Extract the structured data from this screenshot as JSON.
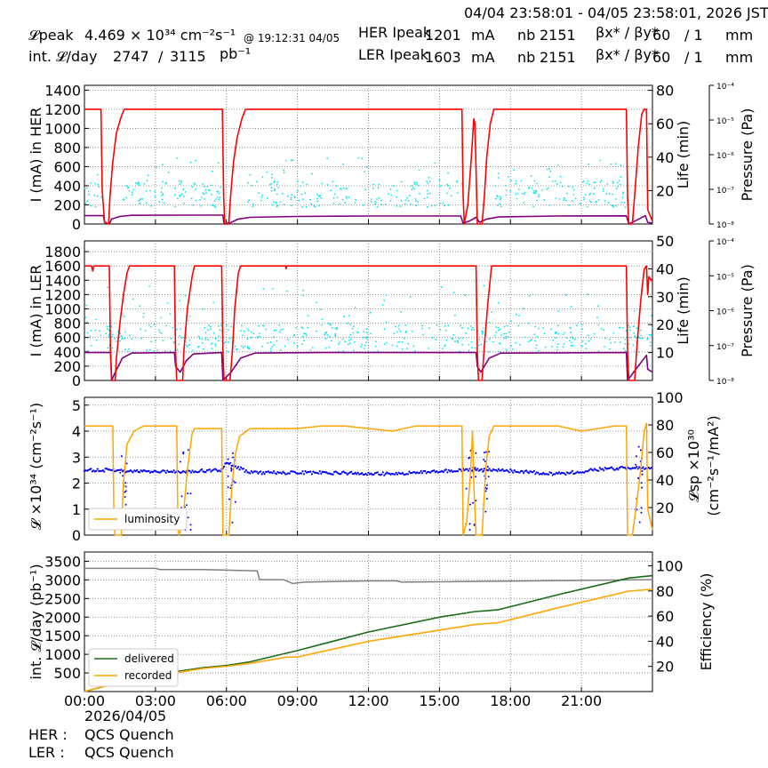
{
  "header": {
    "date_range": "04/04 23:58:01 - 04/05 23:58:01, 2026 JST",
    "lpeak_label": "𝓛peak",
    "lpeak_value": "4.469",
    "lpeak_unit": "× 10³⁴ cm⁻²s⁻¹",
    "lpeak_time": "@ 19:12:31 04/05",
    "intl_label": "int. 𝓛/day",
    "intl_value": "2747",
    "intl_sep": "/",
    "intl_total": "3115",
    "intl_unit": "pb⁻¹",
    "her_label": "HER Ipeak",
    "her_value": "1201",
    "her_unit": "mA",
    "her_nb_label": "nb",
    "her_nb": "2151",
    "her_beta_label": "βx* / βy*",
    "her_beta_x": "60",
    "her_beta_y": "/ 1",
    "her_beta_unit": "mm",
    "ler_label": "LER Ipeak",
    "ler_value": "1603",
    "ler_unit": "mA",
    "ler_nb_label": "nb",
    "ler_nb": "2151",
    "ler_beta_label": "βx* / βy*",
    "ler_beta_x": "60",
    "ler_beta_y": "/ 1",
    "ler_beta_unit": "mm"
  },
  "footer": {
    "date": "2026/04/05",
    "her_label": "HER :",
    "her_note": "QCS Quench",
    "ler_label": "LER :",
    "ler_note": "QCS Quench"
  },
  "colors": {
    "current": "#ff0000",
    "life": "#800080",
    "pressure": "#00e5ee",
    "lumi": "#ffa500",
    "spec": "#0000ff",
    "delivered": "#1a6b1a",
    "recorded": "#ffa500",
    "efficiency": "#808080"
  },
  "chart_data": [
    {
      "type": "line",
      "name": "HER",
      "ylabel": "I (mA) in HER",
      "ylim": [
        0,
        1450
      ],
      "yticks": [
        0,
        200,
        400,
        600,
        800,
        1000,
        1200,
        1400
      ],
      "y2label": "Life (min)",
      "y2lim": [
        0,
        83
      ],
      "y2ticks": [
        20,
        40,
        60,
        80
      ],
      "y3label": "Pressure (Pa)",
      "y3ticks": [
        "10⁻⁴",
        "10⁻⁵",
        "10⁻⁶",
        "10⁻⁷",
        "10⁻⁸"
      ],
      "xlim": [
        0,
        24
      ],
      "current": [
        [
          0,
          1200
        ],
        [
          0.7,
          1200
        ],
        [
          0.75,
          350
        ],
        [
          0.85,
          20
        ],
        [
          1.02,
          0
        ],
        [
          1.08,
          300
        ],
        [
          1.2,
          650
        ],
        [
          1.35,
          950
        ],
        [
          1.55,
          1120
        ],
        [
          1.68,
          1200
        ],
        [
          4.6,
          1200
        ],
        [
          4.67,
          1200
        ],
        [
          5.83,
          1200
        ],
        [
          5.88,
          300
        ],
        [
          5.93,
          0
        ],
        [
          6.1,
          0
        ],
        [
          6.18,
          300
        ],
        [
          6.3,
          650
        ],
        [
          6.45,
          900
        ],
        [
          6.65,
          1100
        ],
        [
          6.8,
          1195
        ],
        [
          6.9,
          1200
        ],
        [
          15.95,
          1200
        ],
        [
          16.0,
          300
        ],
        [
          16.05,
          0
        ],
        [
          16.2,
          200
        ],
        [
          16.35,
          700
        ],
        [
          16.45,
          1100
        ],
        [
          16.5,
          1050
        ],
        [
          16.6,
          0
        ],
        [
          16.8,
          0
        ],
        [
          16.9,
          300
        ],
        [
          17.0,
          700
        ],
        [
          17.15,
          1050
        ],
        [
          17.3,
          1200
        ],
        [
          22.9,
          1200
        ],
        [
          22.95,
          300
        ],
        [
          23.0,
          0
        ],
        [
          23.15,
          0
        ],
        [
          23.25,
          300
        ],
        [
          23.4,
          800
        ],
        [
          23.55,
          1150
        ],
        [
          23.65,
          1200
        ],
        [
          23.75,
          1200
        ],
        [
          23.8,
          150
        ],
        [
          24,
          30
        ]
      ],
      "life": [
        [
          0,
          5
        ],
        [
          0.8,
          5
        ],
        [
          0.85,
          1
        ],
        [
          1.05,
          0
        ],
        [
          1.15,
          3
        ],
        [
          1.5,
          4.5
        ],
        [
          2,
          5.2
        ],
        [
          4.6,
          5.3
        ],
        [
          5.85,
          5.3
        ],
        [
          5.9,
          0
        ],
        [
          6.2,
          1
        ],
        [
          6.5,
          3
        ],
        [
          7,
          4
        ],
        [
          9,
          4.5
        ],
        [
          12,
          4.8
        ],
        [
          15.9,
          4.8
        ],
        [
          16,
          0.5
        ],
        [
          16.3,
          2
        ],
        [
          16.55,
          4
        ],
        [
          16.7,
          1
        ],
        [
          17,
          3
        ],
        [
          17.5,
          4.2
        ],
        [
          20,
          4.8
        ],
        [
          22.9,
          4.9
        ],
        [
          23,
          0
        ],
        [
          23.3,
          2
        ],
        [
          23.7,
          5
        ],
        [
          23.8,
          1
        ],
        [
          24,
          0.5
        ]
      ],
      "pressure_band": [
        10,
        26
      ],
      "pressure_gaps": [
        [
          0.75,
          1.6
        ],
        [
          5.83,
          6.85
        ],
        [
          15.95,
          17.3
        ],
        [
          22.9,
          24
        ]
      ]
    },
    {
      "type": "line",
      "name": "LER",
      "ylabel": "I (mA) in LER",
      "ylim": [
        0,
        1950
      ],
      "yticks": [
        0,
        200,
        400,
        600,
        800,
        1000,
        1200,
        1400,
        1600,
        1800
      ],
      "y2label": "Life (min)",
      "y2lim": [
        0,
        50
      ],
      "y2ticks": [
        10,
        20,
        30,
        40,
        50
      ],
      "y3label": "Pressure (Pa)",
      "y3ticks": [
        "10⁻⁴",
        "10⁻⁵",
        "10⁻⁶",
        "10⁻⁷",
        "10⁻⁸"
      ],
      "xlim": [
        0,
        24
      ],
      "current": [
        [
          0,
          1600
        ],
        [
          0.3,
          1600
        ],
        [
          0.35,
          1530
        ],
        [
          0.4,
          1600
        ],
        [
          1.05,
          1600
        ],
        [
          1.1,
          400
        ],
        [
          1.15,
          0
        ],
        [
          1.3,
          0
        ],
        [
          1.35,
          300
        ],
        [
          1.5,
          800
        ],
        [
          1.65,
          1200
        ],
        [
          1.8,
          1500
        ],
        [
          1.9,
          1600
        ],
        [
          3.8,
          1600
        ],
        [
          3.85,
          400
        ],
        [
          3.9,
          0
        ],
        [
          4.15,
          0
        ],
        [
          4.2,
          400
        ],
        [
          4.35,
          1000
        ],
        [
          4.55,
          1450
        ],
        [
          4.65,
          1600
        ],
        [
          5.8,
          1600
        ],
        [
          5.85,
          400
        ],
        [
          5.9,
          0
        ],
        [
          6.15,
          0
        ],
        [
          6.25,
          400
        ],
        [
          6.35,
          1000
        ],
        [
          6.5,
          1500
        ],
        [
          6.6,
          1600
        ],
        [
          8.5,
          1600
        ],
        [
          8.52,
          1560
        ],
        [
          8.55,
          1600
        ],
        [
          16.55,
          1600
        ],
        [
          16.6,
          400
        ],
        [
          16.65,
          0
        ],
        [
          16.8,
          0
        ],
        [
          16.9,
          500
        ],
        [
          17.05,
          1100
        ],
        [
          17.2,
          1600
        ],
        [
          22.9,
          1600
        ],
        [
          22.95,
          400
        ],
        [
          23.0,
          0
        ],
        [
          23.25,
          0
        ],
        [
          23.35,
          500
        ],
        [
          23.5,
          1100
        ],
        [
          23.65,
          1550
        ],
        [
          23.75,
          1600
        ],
        [
          23.8,
          1200
        ],
        [
          23.85,
          1450
        ],
        [
          24,
          1380
        ]
      ],
      "life": [
        [
          0,
          10
        ],
        [
          1.1,
          10
        ],
        [
          1.15,
          0
        ],
        [
          1.25,
          2
        ],
        [
          1.6,
          8
        ],
        [
          2,
          9.8
        ],
        [
          3.8,
          10
        ],
        [
          3.85,
          5
        ],
        [
          4.05,
          3
        ],
        [
          4.3,
          7
        ],
        [
          4.6,
          9.5
        ],
        [
          5.8,
          10
        ],
        [
          5.85,
          0
        ],
        [
          6.2,
          3
        ],
        [
          6.6,
          8
        ],
        [
          7.2,
          9.8
        ],
        [
          10,
          10
        ],
        [
          16.55,
          10
        ],
        [
          16.6,
          5
        ],
        [
          16.75,
          3
        ],
        [
          17.1,
          8
        ],
        [
          17.6,
          9.8
        ],
        [
          22.9,
          10
        ],
        [
          22.95,
          0
        ],
        [
          23.3,
          4
        ],
        [
          23.75,
          9
        ],
        [
          23.8,
          4
        ],
        [
          24,
          3
        ]
      ],
      "pressure_band": [
        10,
        20
      ],
      "pressure_gaps": []
    },
    {
      "type": "line",
      "name": "Luminosity",
      "ylabel": "𝓛 ×10³⁴ (cm⁻²s⁻¹)",
      "ylim": [
        0,
        5.3
      ],
      "yticks": [
        0,
        1,
        2,
        3,
        4,
        5
      ],
      "y2label": "𝓛sp ×10³⁰ (cm⁻²s⁻¹/mA²)",
      "y2lim": [
        0,
        100
      ],
      "y2ticks": [
        20,
        40,
        60,
        80,
        100
      ],
      "legend": [
        "luminosity"
      ],
      "legend_position": "lower-left",
      "xlim": [
        0,
        24
      ],
      "luminosity": [
        [
          0,
          4.2
        ],
        [
          1.2,
          4.2
        ],
        [
          1.25,
          0.3
        ],
        [
          1.3,
          0
        ],
        [
          1.55,
          0
        ],
        [
          1.65,
          2
        ],
        [
          1.8,
          3.5
        ],
        [
          2.1,
          4.0
        ],
        [
          2.5,
          4.2
        ],
        [
          3.9,
          4.2
        ],
        [
          3.95,
          0.3
        ],
        [
          4.0,
          0
        ],
        [
          4.15,
          0.5
        ],
        [
          4.35,
          2.5
        ],
        [
          4.55,
          3.9
        ],
        [
          4.65,
          4.1
        ],
        [
          5.8,
          4.1
        ],
        [
          5.85,
          0
        ],
        [
          6.1,
          0
        ],
        [
          6.2,
          1.5
        ],
        [
          6.35,
          3
        ],
        [
          6.55,
          3.8
        ],
        [
          7,
          4.1
        ],
        [
          9,
          4.1
        ],
        [
          10,
          4.2
        ],
        [
          11,
          4.2
        ],
        [
          13,
          4.0
        ],
        [
          14,
          4.2
        ],
        [
          15.95,
          4.2
        ],
        [
          16.0,
          0
        ],
        [
          16.15,
          0.5
        ],
        [
          16.3,
          2.2
        ],
        [
          16.4,
          4.0
        ],
        [
          16.45,
          2
        ],
        [
          16.55,
          0
        ],
        [
          16.8,
          0
        ],
        [
          16.95,
          2.5
        ],
        [
          17.1,
          3.8
        ],
        [
          17.3,
          4.2
        ],
        [
          20,
          4.2
        ],
        [
          21,
          4.0
        ],
        [
          22.4,
          4.2
        ],
        [
          22.9,
          4.2
        ],
        [
          22.95,
          0
        ],
        [
          23.15,
          0
        ],
        [
          23.3,
          1
        ],
        [
          23.5,
          2.5
        ],
        [
          23.65,
          4.0
        ],
        [
          23.75,
          4.3
        ],
        [
          23.8,
          1
        ],
        [
          24,
          0.2
        ]
      ],
      "specific": [
        [
          0,
          2.5
        ],
        [
          1.0,
          2.5
        ],
        [
          2.0,
          2.45
        ],
        [
          4.0,
          2.45
        ],
        [
          5.8,
          2.5
        ],
        [
          6.0,
          2.8
        ],
        [
          7.0,
          2.4
        ],
        [
          10,
          2.4
        ],
        [
          13,
          2.35
        ],
        [
          16,
          2.5
        ],
        [
          17.5,
          2.5
        ],
        [
          20,
          2.35
        ],
        [
          22,
          2.55
        ],
        [
          24,
          2.6
        ]
      ]
    },
    {
      "type": "line",
      "name": "Integrated",
      "ylabel": "int. 𝓛/day (pb⁻¹)",
      "ylim": [
        0,
        3750
      ],
      "yticks": [
        500,
        1000,
        1500,
        2000,
        2500,
        3000,
        3500
      ],
      "y2label": "Efficiency (%)",
      "y2lim": [
        0,
        111
      ],
      "y2ticks": [
        20,
        40,
        60,
        80,
        100
      ],
      "xticks": [
        "00:00",
        "03:00",
        "06:00",
        "09:00",
        "12:00",
        "15:00",
        "18:00",
        "21:00"
      ],
      "legend": [
        "delivered",
        "recorded"
      ],
      "legend_position": "lower-left",
      "xlim": [
        0,
        24
      ],
      "delivered": [
        [
          0,
          0
        ],
        [
          1.2,
          200
        ],
        [
          3,
          450
        ],
        [
          4,
          550
        ],
        [
          5,
          640
        ],
        [
          6,
          700
        ],
        [
          7,
          800
        ],
        [
          9,
          1100
        ],
        [
          12,
          1600
        ],
        [
          15,
          2000
        ],
        [
          16.5,
          2150
        ],
        [
          17,
          2170
        ],
        [
          17.5,
          2200
        ],
        [
          20,
          2600
        ],
        [
          23,
          3050
        ],
        [
          24,
          3115
        ]
      ],
      "recorded": [
        [
          0,
          0
        ],
        [
          1.2,
          200
        ],
        [
          3,
          430
        ],
        [
          4,
          520
        ],
        [
          5,
          620
        ],
        [
          6,
          680
        ],
        [
          7,
          760
        ],
        [
          8.5,
          920
        ],
        [
          9,
          930
        ],
        [
          12,
          1350
        ],
        [
          13,
          1450
        ],
        [
          15,
          1650
        ],
        [
          16.5,
          1800
        ],
        [
          17.5,
          1850
        ],
        [
          20,
          2250
        ],
        [
          23,
          2700
        ],
        [
          24,
          2750
        ]
      ],
      "efficiency": [
        [
          0,
          98
        ],
        [
          3,
          98
        ],
        [
          3.2,
          97
        ],
        [
          5,
          97
        ],
        [
          7.3,
          96
        ],
        [
          7.4,
          89
        ],
        [
          8.4,
          89
        ],
        [
          8.8,
          86
        ],
        [
          9.3,
          87
        ],
        [
          12,
          88
        ],
        [
          13.2,
          88
        ],
        [
          13.4,
          87
        ],
        [
          24,
          89
        ]
      ]
    }
  ]
}
